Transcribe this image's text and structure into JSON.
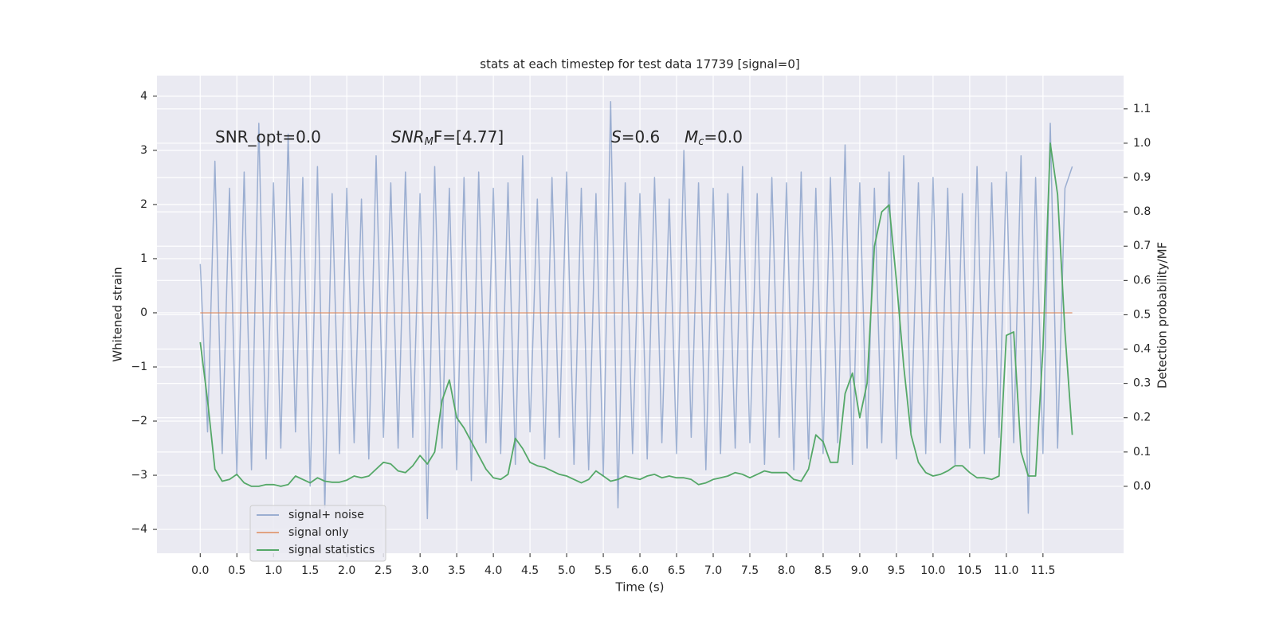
{
  "chart_data": {
    "type": "line",
    "title": "stats at each timestep for test data 17739 [signal=0]",
    "xlabel": "Time (s)",
    "ylabel": "Whitened strain",
    "y2label": "Detection probability/MF",
    "annotations": [
      {
        "text": "SNR_opt=0.0"
      },
      {
        "italic": "SNR",
        "sub": "M",
        "text": "F=[4.77]"
      },
      {
        "italic": "S",
        "text": "=0.6"
      },
      {
        "italic": "M",
        "sub": "c",
        "text": "=0.0"
      }
    ],
    "grid": true,
    "legend": "lower left",
    "xlim": [
      -0.59,
      12.6
    ],
    "ylim": [
      -4.44,
      4.38
    ],
    "y2lim": [
      -0.195,
      1.197
    ],
    "xticks": [
      {
        "value": 0,
        "label": "0.0"
      },
      {
        "value": 0.5,
        "label": "0.5"
      },
      {
        "value": 1,
        "label": "1.0"
      },
      {
        "value": 1.5,
        "label": "1.5"
      },
      {
        "value": 2,
        "label": "2.0"
      },
      {
        "value": 2.5,
        "label": "2.5"
      },
      {
        "value": 3,
        "label": "3.0"
      },
      {
        "value": 3.5,
        "label": "3.5"
      },
      {
        "value": 4,
        "label": "4.0"
      },
      {
        "value": 4.5,
        "label": "4.5"
      },
      {
        "value": 5,
        "label": "5.0"
      },
      {
        "value": 5.5,
        "label": "5.5"
      },
      {
        "value": 6,
        "label": "6.0"
      },
      {
        "value": 6.5,
        "label": "6.5"
      },
      {
        "value": 7,
        "label": "7.0"
      },
      {
        "value": 7.5,
        "label": "7.5"
      },
      {
        "value": 8,
        "label": "8.0"
      },
      {
        "value": 8.5,
        "label": "8.5"
      },
      {
        "value": 9,
        "label": "9.0"
      },
      {
        "value": 9.5,
        "label": "9.5"
      },
      {
        "value": 10,
        "label": "10.0"
      },
      {
        "value": 10.5,
        "label": "10.5"
      },
      {
        "value": 11,
        "label": "11.0"
      },
      {
        "value": 11.5,
        "label": "11.5"
      }
    ],
    "yticks": [
      {
        "value": -4,
        "label": "−4"
      },
      {
        "value": -3,
        "label": "−3"
      },
      {
        "value": -2,
        "label": "−2"
      },
      {
        "value": -1,
        "label": "−1"
      },
      0,
      1,
      2,
      3,
      4
    ],
    "y2ticks": [
      {
        "value": 0,
        "label": "0.0"
      },
      {
        "value": 0.1,
        "label": "0.1"
      },
      {
        "value": 0.2,
        "label": "0.2"
      },
      {
        "value": 0.3,
        "label": "0.3"
      },
      {
        "value": 0.4,
        "label": "0.4"
      },
      {
        "value": 0.5,
        "label": "0.5"
      },
      {
        "value": 0.6,
        "label": "0.6"
      },
      {
        "value": 0.7,
        "label": "0.7"
      },
      {
        "value": 0.8,
        "label": "0.8"
      },
      {
        "value": 0.9,
        "label": "0.9"
      },
      {
        "value": 1,
        "label": "1.0"
      },
      {
        "value": 1.1,
        "label": "1.1"
      }
    ],
    "x": [
      0.0,
      0.1,
      0.2,
      0.3,
      0.4,
      0.5,
      0.6,
      0.7,
      0.8,
      0.9,
      1.0,
      1.1,
      1.2,
      1.3,
      1.4,
      1.5,
      1.6,
      1.7,
      1.8,
      1.9,
      2.0,
      2.1,
      2.2,
      2.3,
      2.4,
      2.5,
      2.6,
      2.7,
      2.8,
      2.9,
      3.0,
      3.1,
      3.2,
      3.3,
      3.4,
      3.5,
      3.6,
      3.7,
      3.8,
      3.9,
      4.0,
      4.1,
      4.2,
      4.3,
      4.4,
      4.5,
      4.6,
      4.7,
      4.8,
      4.9,
      5.0,
      5.1,
      5.2,
      5.3,
      5.4,
      5.5,
      5.6,
      5.7,
      5.8,
      5.9,
      6.0,
      6.1,
      6.2,
      6.3,
      6.4,
      6.5,
      6.6,
      6.7,
      6.8,
      6.9,
      7.0,
      7.1,
      7.2,
      7.3,
      7.4,
      7.5,
      7.6,
      7.7,
      7.8,
      7.9,
      8.0,
      8.1,
      8.2,
      8.3,
      8.4,
      8.5,
      8.6,
      8.7,
      8.8,
      8.9,
      9.0,
      9.1,
      9.2,
      9.3,
      9.4,
      9.5,
      9.6,
      9.7,
      9.8,
      9.9,
      10.0,
      10.1,
      10.2,
      10.3,
      10.4,
      10.5,
      10.6,
      10.7,
      10.8,
      10.9,
      11.0,
      11.1,
      11.2,
      11.3,
      11.4,
      11.5,
      11.6,
      11.7,
      11.8,
      11.9
    ],
    "series": [
      {
        "name": "signal+ noise",
        "color": "#4c72b0",
        "values": [
          0.9,
          -2.2,
          2.8,
          -2.6,
          2.3,
          -3.0,
          2.6,
          -2.9,
          3.5,
          -2.7,
          2.4,
          -2.5,
          3.3,
          -2.2,
          2.5,
          -3.2,
          2.7,
          -3.6,
          2.2,
          -2.6,
          2.3,
          -2.4,
          2.1,
          -2.7,
          2.9,
          -2.3,
          2.4,
          -2.5,
          2.6,
          -2.3,
          2.2,
          -3.8,
          2.7,
          -2.5,
          2.3,
          -2.9,
          2.5,
          -3.1,
          2.6,
          -2.4,
          2.3,
          -2.6,
          2.4,
          -2.8,
          2.9,
          -2.2,
          2.1,
          -2.7,
          2.5,
          -2.3,
          2.6,
          -2.8,
          2.3,
          -2.9,
          2.2,
          -3.0,
          3.9,
          -3.6,
          2.4,
          -2.6,
          2.2,
          -2.7,
          2.5,
          -2.4,
          2.1,
          -2.6,
          3.0,
          -2.3,
          2.4,
          -2.9,
          2.3,
          -2.6,
          2.2,
          -2.5,
          2.7,
          -2.4,
          2.2,
          -2.8,
          2.5,
          -2.3,
          2.4,
          -2.9,
          2.6,
          -2.7,
          2.3,
          -2.6,
          2.5,
          -2.4,
          3.1,
          -2.8,
          2.4,
          -2.5,
          2.3,
          -2.4,
          2.6,
          -2.7,
          2.9,
          -2.2,
          2.4,
          -2.6,
          2.5,
          -2.4,
          2.3,
          -2.8,
          2.2,
          -2.5,
          2.7,
          -2.6,
          2.4,
          -2.3,
          2.6,
          -2.4,
          2.9,
          -3.7,
          2.5,
          -2.6,
          3.5,
          -2.5,
          2.3,
          2.7
        ]
      },
      {
        "name": "signal only",
        "color": "#dd8452",
        "values": [
          0,
          0,
          0,
          0,
          0,
          0,
          0,
          0,
          0,
          0,
          0,
          0,
          0,
          0,
          0,
          0,
          0,
          0,
          0,
          0,
          0,
          0,
          0,
          0,
          0,
          0,
          0,
          0,
          0,
          0,
          0,
          0,
          0,
          0,
          0,
          0,
          0,
          0,
          0,
          0,
          0,
          0,
          0,
          0,
          0,
          0,
          0,
          0,
          0,
          0,
          0,
          0,
          0,
          0,
          0,
          0,
          0,
          0,
          0,
          0,
          0,
          0,
          0,
          0,
          0,
          0,
          0,
          0,
          0,
          0,
          0,
          0,
          0,
          0,
          0,
          0,
          0,
          0,
          0,
          0,
          0,
          0,
          0,
          0,
          0,
          0,
          0,
          0,
          0,
          0,
          0,
          0,
          0,
          0,
          0,
          0,
          0,
          0,
          0,
          0,
          0,
          0,
          0,
          0,
          0,
          0,
          0,
          0,
          0,
          0,
          0,
          0,
          0,
          0,
          0,
          0,
          0,
          0,
          0,
          0
        ]
      },
      {
        "name": "signal statistics",
        "color": "#55a868",
        "axis": "y2",
        "values": [
          0.42,
          0.25,
          0.05,
          0.015,
          0.02,
          0.035,
          0.01,
          0.0,
          0.0,
          0.005,
          0.005,
          0.0,
          0.005,
          0.03,
          0.02,
          0.01,
          0.025,
          0.015,
          0.012,
          0.012,
          0.018,
          0.03,
          0.025,
          0.03,
          0.05,
          0.07,
          0.065,
          0.045,
          0.04,
          0.06,
          0.09,
          0.065,
          0.1,
          0.25,
          0.31,
          0.2,
          0.17,
          0.13,
          0.09,
          0.05,
          0.025,
          0.02,
          0.035,
          0.14,
          0.11,
          0.07,
          0.06,
          0.055,
          0.045,
          0.035,
          0.03,
          0.02,
          0.01,
          0.02,
          0.045,
          0.03,
          0.015,
          0.02,
          0.03,
          0.025,
          0.02,
          0.03,
          0.035,
          0.025,
          0.03,
          0.025,
          0.025,
          0.02,
          0.005,
          0.01,
          0.02,
          0.025,
          0.03,
          0.04,
          0.035,
          0.025,
          0.035,
          0.045,
          0.04,
          0.04,
          0.04,
          0.02,
          0.015,
          0.05,
          0.15,
          0.13,
          0.07,
          0.07,
          0.27,
          0.33,
          0.2,
          0.3,
          0.7,
          0.8,
          0.82,
          0.6,
          0.35,
          0.15,
          0.07,
          0.04,
          0.03,
          0.035,
          0.045,
          0.06,
          0.06,
          0.04,
          0.025,
          0.025,
          0.02,
          0.03,
          0.44,
          0.45,
          0.1,
          0.03,
          0.03,
          0.4,
          1.0,
          0.85,
          0.45,
          0.15
        ]
      }
    ]
  }
}
